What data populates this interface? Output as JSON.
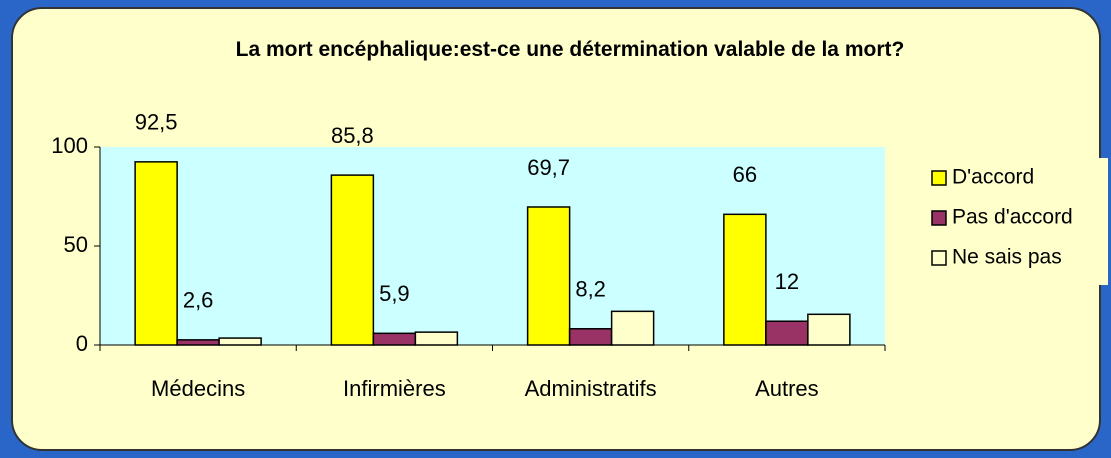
{
  "chart_data": {
    "type": "bar",
    "title": "La mort encéphalique:est-ce une détermination valable de la mort?",
    "categories": [
      "Médecins",
      "Infirmières",
      "Administratifs",
      "Autres"
    ],
    "series": [
      {
        "name": "D'accord",
        "color": "#ffff00",
        "values": [
          92.5,
          85.8,
          69.7,
          66
        ],
        "value_labels": [
          "92,5",
          "85,8",
          "69,7",
          "66"
        ]
      },
      {
        "name": "Pas d'accord",
        "color": "#993366",
        "values": [
          2.6,
          5.9,
          8.2,
          12
        ],
        "value_labels": [
          "2,6",
          "5,9",
          "8,2",
          "12"
        ]
      },
      {
        "name": "Ne sais pas",
        "color": "#ffffcc",
        "values": [
          3.5,
          6.5,
          17,
          15.5
        ]
      }
    ],
    "ylim": [
      0,
      100
    ],
    "yticks": [
      0,
      50,
      100
    ],
    "legend": "right"
  }
}
